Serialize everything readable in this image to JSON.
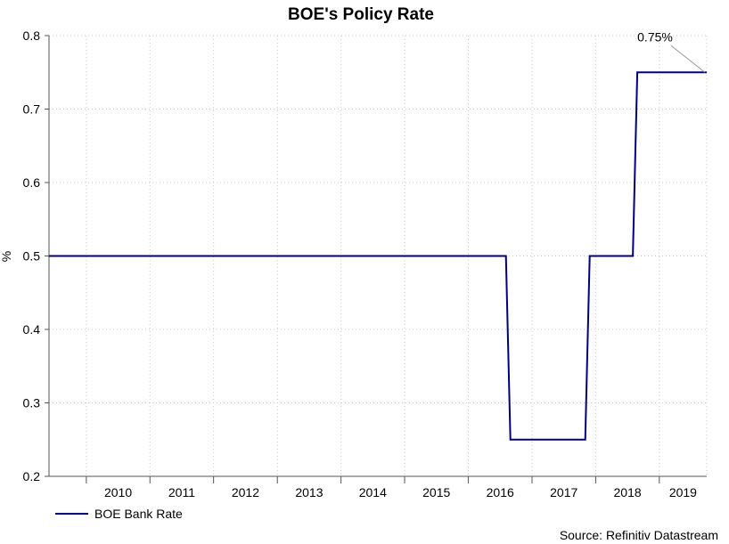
{
  "chart_data": {
    "type": "line",
    "title": "BOE's Policy Rate",
    "ylabel": "%",
    "xlabel": "",
    "ylim": [
      0.2,
      0.8
    ],
    "y_ticks": [
      0.2,
      0.3,
      0.4,
      0.5,
      0.6,
      0.7,
      0.8
    ],
    "y_tick_labels": [
      "0.2",
      "0.3",
      "0.4",
      "0.5",
      "0.6",
      "0.7",
      "0.8"
    ],
    "x_range": [
      "2009-06-01",
      "2019-09-30"
    ],
    "x_tick_labels": [
      "2010",
      "2011",
      "2012",
      "2013",
      "2014",
      "2015",
      "2016",
      "2017",
      "2018",
      "2019"
    ],
    "grid": true,
    "legend_position": "bottom-left",
    "series": [
      {
        "name": "BOE Bank Rate",
        "color": "#000080",
        "points": [
          {
            "x": "2009-06-01",
            "y": 0.5
          },
          {
            "x": "2016-08-04",
            "y": 0.5
          },
          {
            "x": "2016-08-04",
            "y": 0.25
          },
          {
            "x": "2017-11-02",
            "y": 0.25
          },
          {
            "x": "2017-11-02",
            "y": 0.5
          },
          {
            "x": "2018-08-02",
            "y": 0.5
          },
          {
            "x": "2018-08-02",
            "y": 0.75
          },
          {
            "x": "2019-09-30",
            "y": 0.75
          }
        ]
      }
    ],
    "annotation": {
      "text": "0.75%",
      "x": "2019-09-30",
      "y": 0.75
    },
    "source": "Source: Refinitiv Datastream"
  }
}
